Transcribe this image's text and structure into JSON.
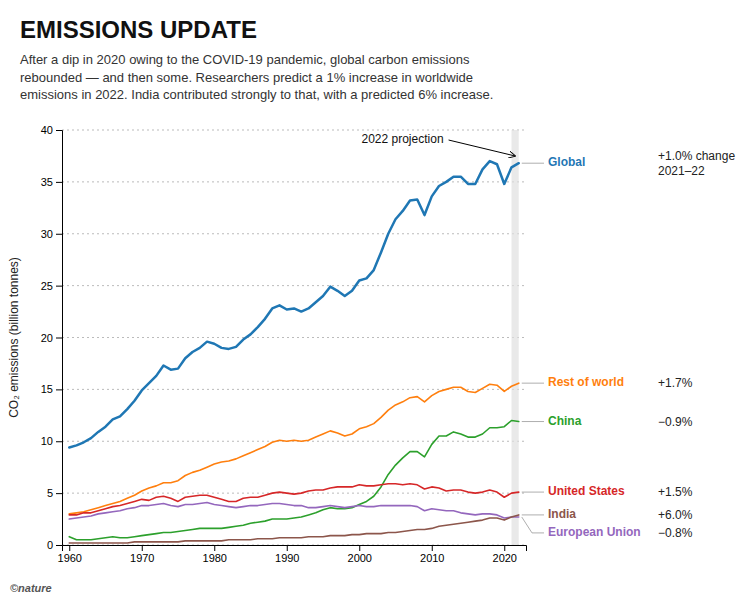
{
  "chart_data": {
    "type": "line",
    "title": "EMISSIONS UPDATE",
    "subtitle": "After a dip in 2020 owing to the COVID-19 pandemic, global carbon emissions\nrebounded — and then some. Researchers predict a 1% increase in worldwide\nemissions in 2022. India contributed strongly to that, with a predicted 6% increase.",
    "ylabel": "CO₂ emissions (billion tonnes)",
    "copyright": "©nature",
    "annotations": [
      "2022 projection"
    ],
    "x": [
      1960,
      1961,
      1962,
      1963,
      1964,
      1965,
      1966,
      1967,
      1968,
      1969,
      1970,
      1971,
      1972,
      1973,
      1974,
      1975,
      1976,
      1977,
      1978,
      1979,
      1980,
      1981,
      1982,
      1983,
      1984,
      1985,
      1986,
      1987,
      1988,
      1989,
      1990,
      1991,
      1992,
      1993,
      1994,
      1995,
      1996,
      1997,
      1998,
      1999,
      2000,
      2001,
      2002,
      2003,
      2004,
      2005,
      2006,
      2007,
      2008,
      2009,
      2010,
      2011,
      2012,
      2013,
      2014,
      2015,
      2016,
      2017,
      2018,
      2019,
      2020,
      2021,
      2022
    ],
    "series": [
      {
        "name": "Global",
        "change": "+1.0% change\n2021–22",
        "values": [
          9.4,
          9.6,
          9.9,
          10.3,
          10.9,
          11.4,
          12.1,
          12.4,
          13.1,
          13.9,
          14.9,
          15.6,
          16.3,
          17.3,
          16.9,
          17.0,
          18.0,
          18.6,
          19.0,
          19.6,
          19.4,
          19.0,
          18.9,
          19.1,
          19.8,
          20.3,
          21.0,
          21.8,
          22.8,
          23.1,
          22.7,
          22.8,
          22.5,
          22.8,
          23.4,
          24.0,
          24.9,
          24.5,
          24.0,
          24.5,
          25.5,
          25.7,
          26.5,
          28.2,
          30.0,
          31.4,
          32.2,
          33.2,
          33.3,
          31.8,
          33.6,
          34.6,
          35.0,
          35.5,
          35.5,
          34.8,
          34.8,
          36.2,
          37.0,
          36.7,
          34.8,
          36.4,
          36.8
        ]
      },
      {
        "name": "Rest of world",
        "change": "+1.7%",
        "values": [
          3.0,
          3.1,
          3.2,
          3.4,
          3.6,
          3.8,
          4.0,
          4.2,
          4.5,
          4.8,
          5.2,
          5.5,
          5.7,
          6.0,
          6.0,
          6.2,
          6.7,
          7.0,
          7.2,
          7.5,
          7.8,
          8.0,
          8.1,
          8.3,
          8.6,
          8.9,
          9.2,
          9.5,
          9.9,
          10.1,
          10.0,
          10.1,
          10.0,
          10.1,
          10.4,
          10.7,
          11.0,
          10.8,
          10.5,
          10.7,
          11.2,
          11.4,
          11.7,
          12.3,
          13.0,
          13.5,
          13.8,
          14.2,
          14.3,
          13.8,
          14.4,
          14.8,
          15.0,
          15.2,
          15.2,
          14.8,
          14.7,
          15.1,
          15.5,
          15.4,
          14.8,
          15.3,
          15.6
        ]
      },
      {
        "name": "China",
        "change": "−0.9%",
        "values": [
          0.8,
          0.5,
          0.5,
          0.5,
          0.6,
          0.7,
          0.8,
          0.7,
          0.7,
          0.8,
          0.9,
          1.0,
          1.1,
          1.2,
          1.2,
          1.3,
          1.4,
          1.5,
          1.6,
          1.6,
          1.6,
          1.6,
          1.7,
          1.8,
          1.9,
          2.1,
          2.2,
          2.3,
          2.5,
          2.5,
          2.5,
          2.6,
          2.7,
          2.9,
          3.1,
          3.4,
          3.6,
          3.5,
          3.5,
          3.6,
          3.9,
          4.2,
          4.7,
          5.6,
          6.8,
          7.7,
          8.4,
          9.0,
          9.0,
          8.5,
          9.7,
          10.5,
          10.5,
          10.9,
          10.7,
          10.4,
          10.4,
          10.7,
          11.3,
          11.3,
          11.4,
          12.0,
          11.9
        ]
      },
      {
        "name": "United States",
        "change": "+1.5%",
        "values": [
          2.9,
          2.9,
          3.1,
          3.1,
          3.3,
          3.5,
          3.7,
          3.8,
          4.0,
          4.2,
          4.4,
          4.3,
          4.6,
          4.7,
          4.5,
          4.2,
          4.6,
          4.7,
          4.8,
          4.8,
          4.6,
          4.4,
          4.2,
          4.2,
          4.5,
          4.6,
          4.6,
          4.8,
          5.0,
          5.1,
          5.0,
          4.9,
          5.0,
          5.2,
          5.3,
          5.3,
          5.5,
          5.6,
          5.6,
          5.6,
          5.8,
          5.7,
          5.7,
          5.8,
          5.9,
          5.9,
          5.8,
          5.9,
          5.8,
          5.4,
          5.6,
          5.5,
          5.2,
          5.3,
          5.3,
          5.1,
          5.0,
          5.1,
          5.3,
          5.1,
          4.6,
          5.0,
          5.1
        ]
      },
      {
        "name": "European Union",
        "change": "−0.8%",
        "values": [
          2.5,
          2.6,
          2.7,
          2.8,
          3.0,
          3.1,
          3.2,
          3.3,
          3.5,
          3.6,
          3.8,
          3.8,
          3.9,
          4.0,
          3.8,
          3.7,
          3.9,
          3.9,
          4.0,
          4.1,
          3.9,
          3.8,
          3.7,
          3.6,
          3.7,
          3.8,
          3.8,
          3.9,
          4.0,
          4.0,
          3.9,
          3.8,
          3.8,
          3.6,
          3.6,
          3.7,
          3.8,
          3.7,
          3.6,
          3.7,
          3.8,
          3.7,
          3.7,
          3.8,
          3.8,
          3.8,
          3.8,
          3.8,
          3.7,
          3.3,
          3.5,
          3.4,
          3.3,
          3.3,
          3.1,
          3.0,
          2.9,
          3.0,
          3.0,
          2.9,
          2.6,
          2.7,
          2.7
        ]
      },
      {
        "name": "India",
        "change": "+6.0%",
        "values": [
          0.2,
          0.2,
          0.2,
          0.2,
          0.2,
          0.2,
          0.2,
          0.2,
          0.2,
          0.3,
          0.3,
          0.3,
          0.3,
          0.3,
          0.3,
          0.3,
          0.4,
          0.4,
          0.4,
          0.4,
          0.4,
          0.4,
          0.5,
          0.5,
          0.5,
          0.5,
          0.6,
          0.6,
          0.6,
          0.7,
          0.7,
          0.7,
          0.7,
          0.8,
          0.8,
          0.8,
          0.9,
          0.9,
          0.9,
          1.0,
          1.0,
          1.1,
          1.1,
          1.1,
          1.2,
          1.2,
          1.3,
          1.4,
          1.5,
          1.5,
          1.6,
          1.8,
          1.9,
          2.0,
          2.1,
          2.2,
          2.3,
          2.4,
          2.6,
          2.6,
          2.4,
          2.7,
          2.9
        ]
      }
    ],
    "shaded_region": [
      2021,
      2022
    ],
    "xlim": [
      1959,
      2023
    ],
    "ylim": [
      0,
      40
    ],
    "xticks": [
      1960,
      1970,
      1980,
      1990,
      2000,
      2010,
      2020
    ],
    "yticks": [
      0,
      5,
      10,
      15,
      20,
      25,
      30,
      35,
      40
    ],
    "grid": true
  }
}
